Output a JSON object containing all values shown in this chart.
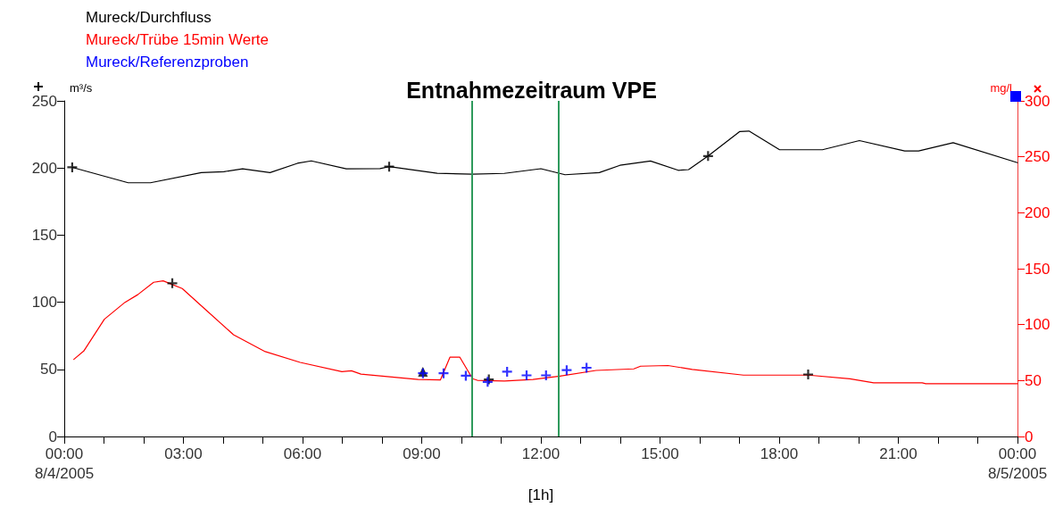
{
  "chart_data": {
    "type": "line",
    "xlabel": "[1h]",
    "ylabel": "m³/s",
    "y2label": "mg/l",
    "annotations": [
      "Entnahmezeitraum VPE"
    ],
    "xlim": [
      0,
      24
    ],
    "xticks": [
      {
        "value": 0,
        "label": "00:00\n8/4/2005"
      },
      {
        "value": 1,
        "label": null
      },
      {
        "value": 2,
        "label": null
      },
      {
        "value": 3,
        "label": "03:00"
      },
      {
        "value": 4,
        "label": null
      },
      {
        "value": 5,
        "label": null
      },
      {
        "value": 6,
        "label": "06:00"
      },
      {
        "value": 7,
        "label": null
      },
      {
        "value": 8,
        "label": null
      },
      {
        "value": 9,
        "label": "09:00"
      },
      {
        "value": 10,
        "label": null
      },
      {
        "value": 11,
        "label": null
      },
      {
        "value": 12,
        "label": "12:00"
      },
      {
        "value": 13,
        "label": null
      },
      {
        "value": 14,
        "label": null
      },
      {
        "value": 15,
        "label": "15:00"
      },
      {
        "value": 16,
        "label": null
      },
      {
        "value": 17,
        "label": null
      },
      {
        "value": 18,
        "label": "18:00"
      },
      {
        "value": 19,
        "label": null
      },
      {
        "value": 20,
        "label": null
      },
      {
        "value": 21,
        "label": "21:00"
      },
      {
        "value": 22,
        "label": null
      },
      {
        "value": 23,
        "label": null
      },
      {
        "value": 24,
        "label": "00:00\n8/5/2005"
      }
    ],
    "ylim": [
      0,
      250
    ],
    "yticks": [
      0,
      50,
      100,
      150,
      200,
      250
    ],
    "y2lim": [
      0,
      300
    ],
    "y2ticks": [
      0,
      50,
      100,
      150,
      200,
      250,
      300
    ],
    "grid": false,
    "legend": "top left",
    "line_style": "solid",
    "series": [
      {
        "name": "Mureck/Durchfluss",
        "color": "#000000",
        "x": [
          0.2,
          1.61,
          2.17,
          3.45,
          4.02,
          4.49,
          5.18,
          5.87,
          6.22,
          7.1,
          7.95,
          8.18,
          9.39,
          10.27,
          11.08,
          12.0,
          12.61,
          13.47,
          13.99,
          14.76,
          15.46,
          15.72,
          16.21,
          17.01,
          17.24,
          18.01,
          19.09,
          20.02,
          21.16,
          21.51,
          22.38,
          24
        ],
        "values": [
          200.5,
          189,
          189,
          196.6,
          197.3,
          199.4,
          196.6,
          203.5,
          205.3,
          199.4,
          199.6,
          201,
          196.1,
          195.4,
          196,
          199.5,
          195,
          196.6,
          202,
          205.2,
          198.3,
          198.8,
          208.9,
          227.2,
          227.5,
          213.6,
          213.6,
          220.4,
          212.7,
          212.7,
          218.8,
          204
        ]
      },
      {
        "name": "Mureck/Trübe 15min Werte",
        "color": "#ff0000",
        "axis": "y2",
        "x": [
          0.24,
          0.49,
          1.01,
          1.53,
          1.85,
          2.25,
          2.49,
          2.97,
          3.53,
          4.26,
          5.06,
          5.94,
          6.99,
          7.23,
          7.47,
          8.91,
          9.47,
          9.71,
          9.96,
          10.28,
          10.4,
          11.08,
          11.8,
          12.48,
          13.39,
          14.34,
          14.51,
          15.2,
          15.81,
          17.1,
          18.74,
          19.78,
          20.38,
          21.6,
          21.69,
          24
        ],
        "values": [
          69,
          76.4,
          104.9,
          120,
          126.8,
          137.9,
          139.2,
          132.3,
          114.4,
          91,
          75.9,
          66.3,
          58,
          58.8,
          55.8,
          51.1,
          50.6,
          70.9,
          70.9,
          51.7,
          50.3,
          49.7,
          51.1,
          54,
          59.1,
          60.5,
          62.9,
          63.5,
          60,
          54.9,
          54.9,
          51.7,
          48.1,
          48.1,
          47.2,
          47.2
        ]
      },
      {
        "name": "Mureck/Referenzproben",
        "type": "scatter",
        "marker": "cross",
        "color": "#0000ff",
        "axis": "y2",
        "x": [
          9.03,
          9.55,
          10.11,
          10.66,
          11.15,
          11.64,
          12.13,
          12.65,
          13.15
        ],
        "values": [
          56.6,
          56.6,
          54.4,
          48.9,
          58,
          54.7,
          54.7,
          59.4,
          61.5
        ]
      },
      {
        "type": "scatter",
        "marker": "cross",
        "color": "#000000",
        "x": [
          0.2,
          8.18,
          16.21
        ],
        "values": [
          200.5,
          201,
          208.9
        ]
      },
      {
        "type": "scatter",
        "marker": "cross",
        "color": "#000000",
        "axis": "y2",
        "x": [
          2.72,
          10.69,
          18.73
        ],
        "values": [
          137,
          51.1,
          55.5
        ]
      },
      {
        "type": "scatter",
        "marker": "triangle",
        "color": "#000000",
        "axis": "y2",
        "x": [
          9.03
        ],
        "values": [
          58
        ]
      }
    ],
    "ref_lines": [
      {
        "axis": "x",
        "value": 10.27,
        "color": "#2e9a5c"
      },
      {
        "axis": "x",
        "value": 12.45,
        "color": "#2e9a5c"
      }
    ]
  }
}
